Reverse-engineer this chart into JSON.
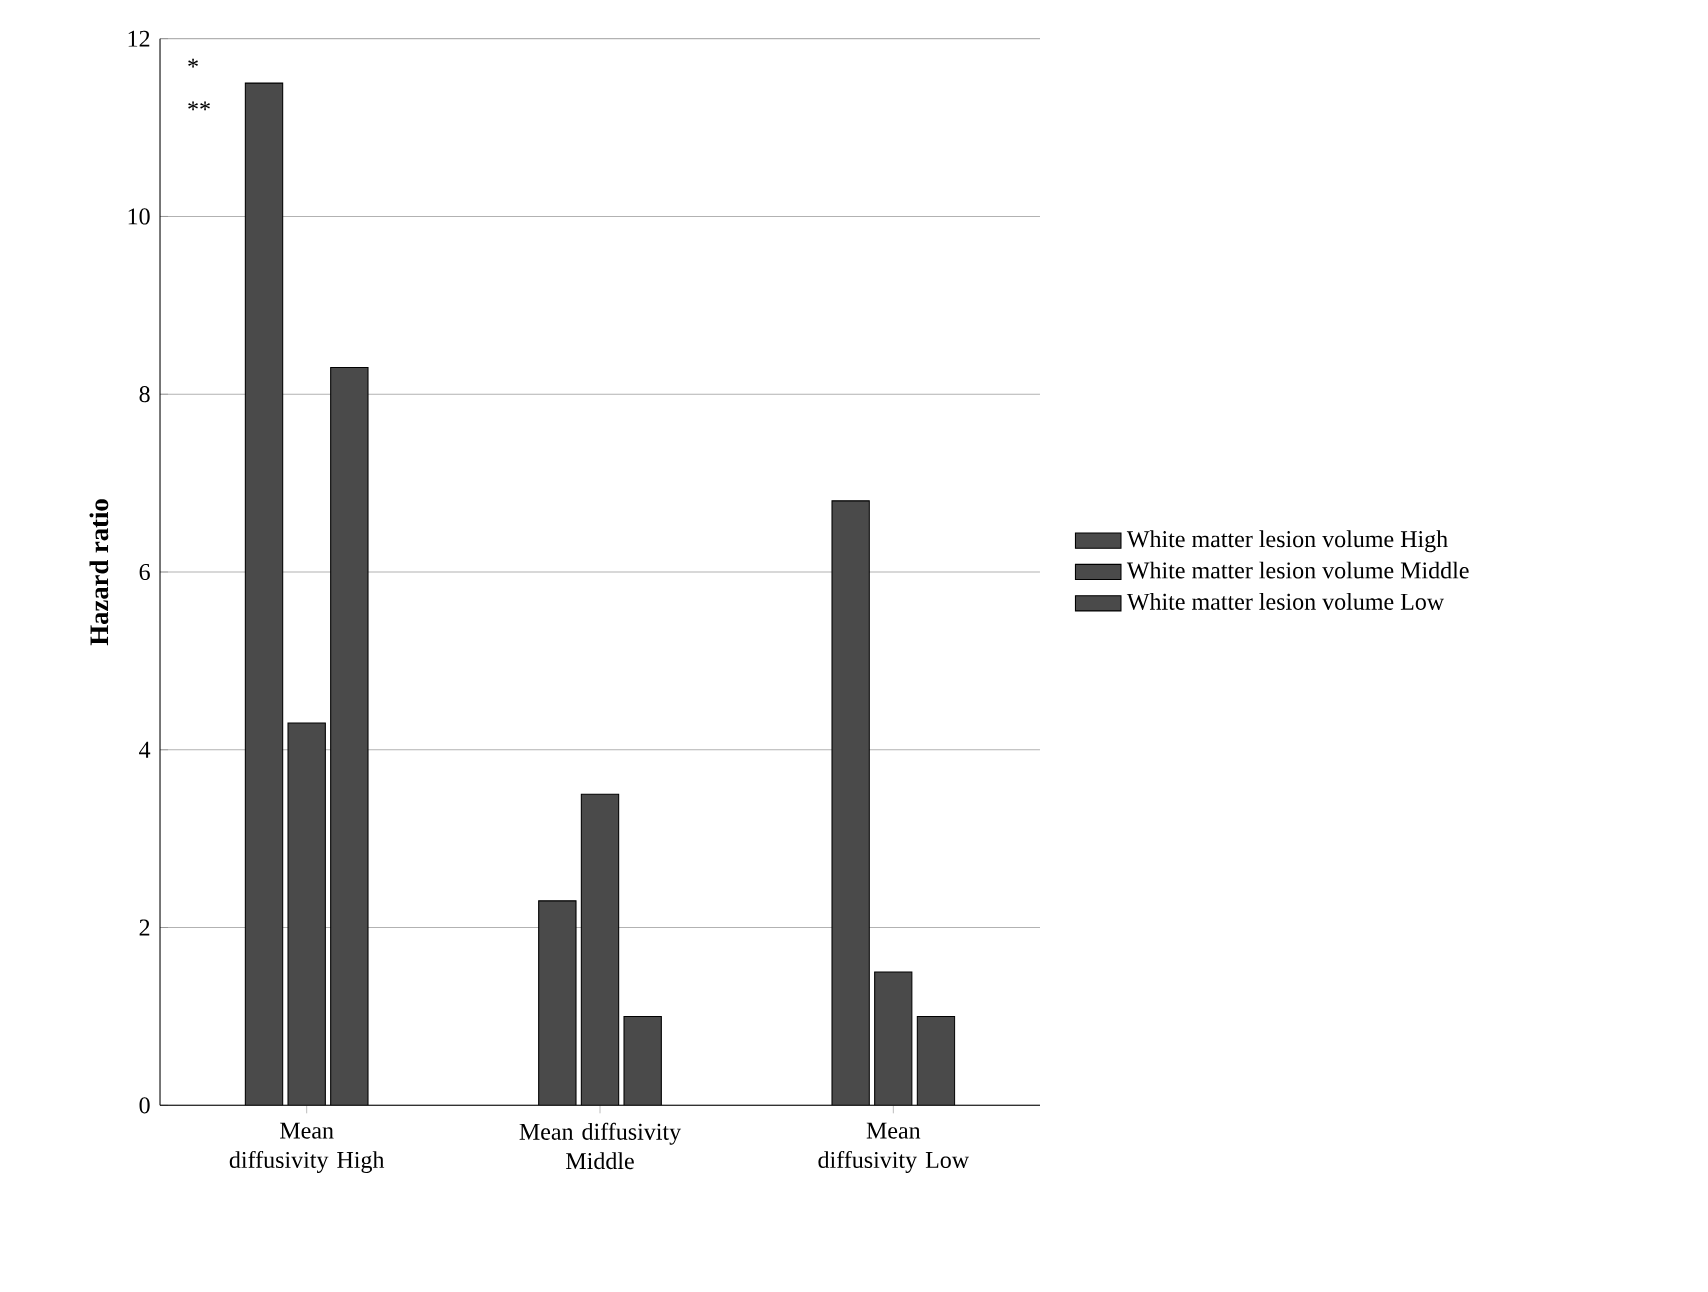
{
  "chart_data": {
    "type": "bar",
    "ylabel": "Hazard ratio",
    "categories": [
      "Mean diffusivity High",
      "Mean diffusivity Middle",
      "Mean diffusivity Low"
    ],
    "series": [
      {
        "name": "White matter lesion volume High",
        "color": "#4a4a4a",
        "values": [
          11.5,
          2.3,
          6.8
        ]
      },
      {
        "name": "White matter lesion volume Middle",
        "color": "#4a4a4a",
        "values": [
          4.3,
          3.5,
          1.5
        ]
      },
      {
        "name": "White matter lesion volume  Low",
        "color": "#4a4a4a",
        "values": [
          8.3,
          1.0,
          1.0
        ]
      }
    ],
    "ylim": [
      0,
      12
    ],
    "yticks": [
      0,
      2,
      4,
      6,
      8,
      10,
      12
    ],
    "grid": "y",
    "legend": "right",
    "annotations": [
      "*",
      "**"
    ]
  }
}
